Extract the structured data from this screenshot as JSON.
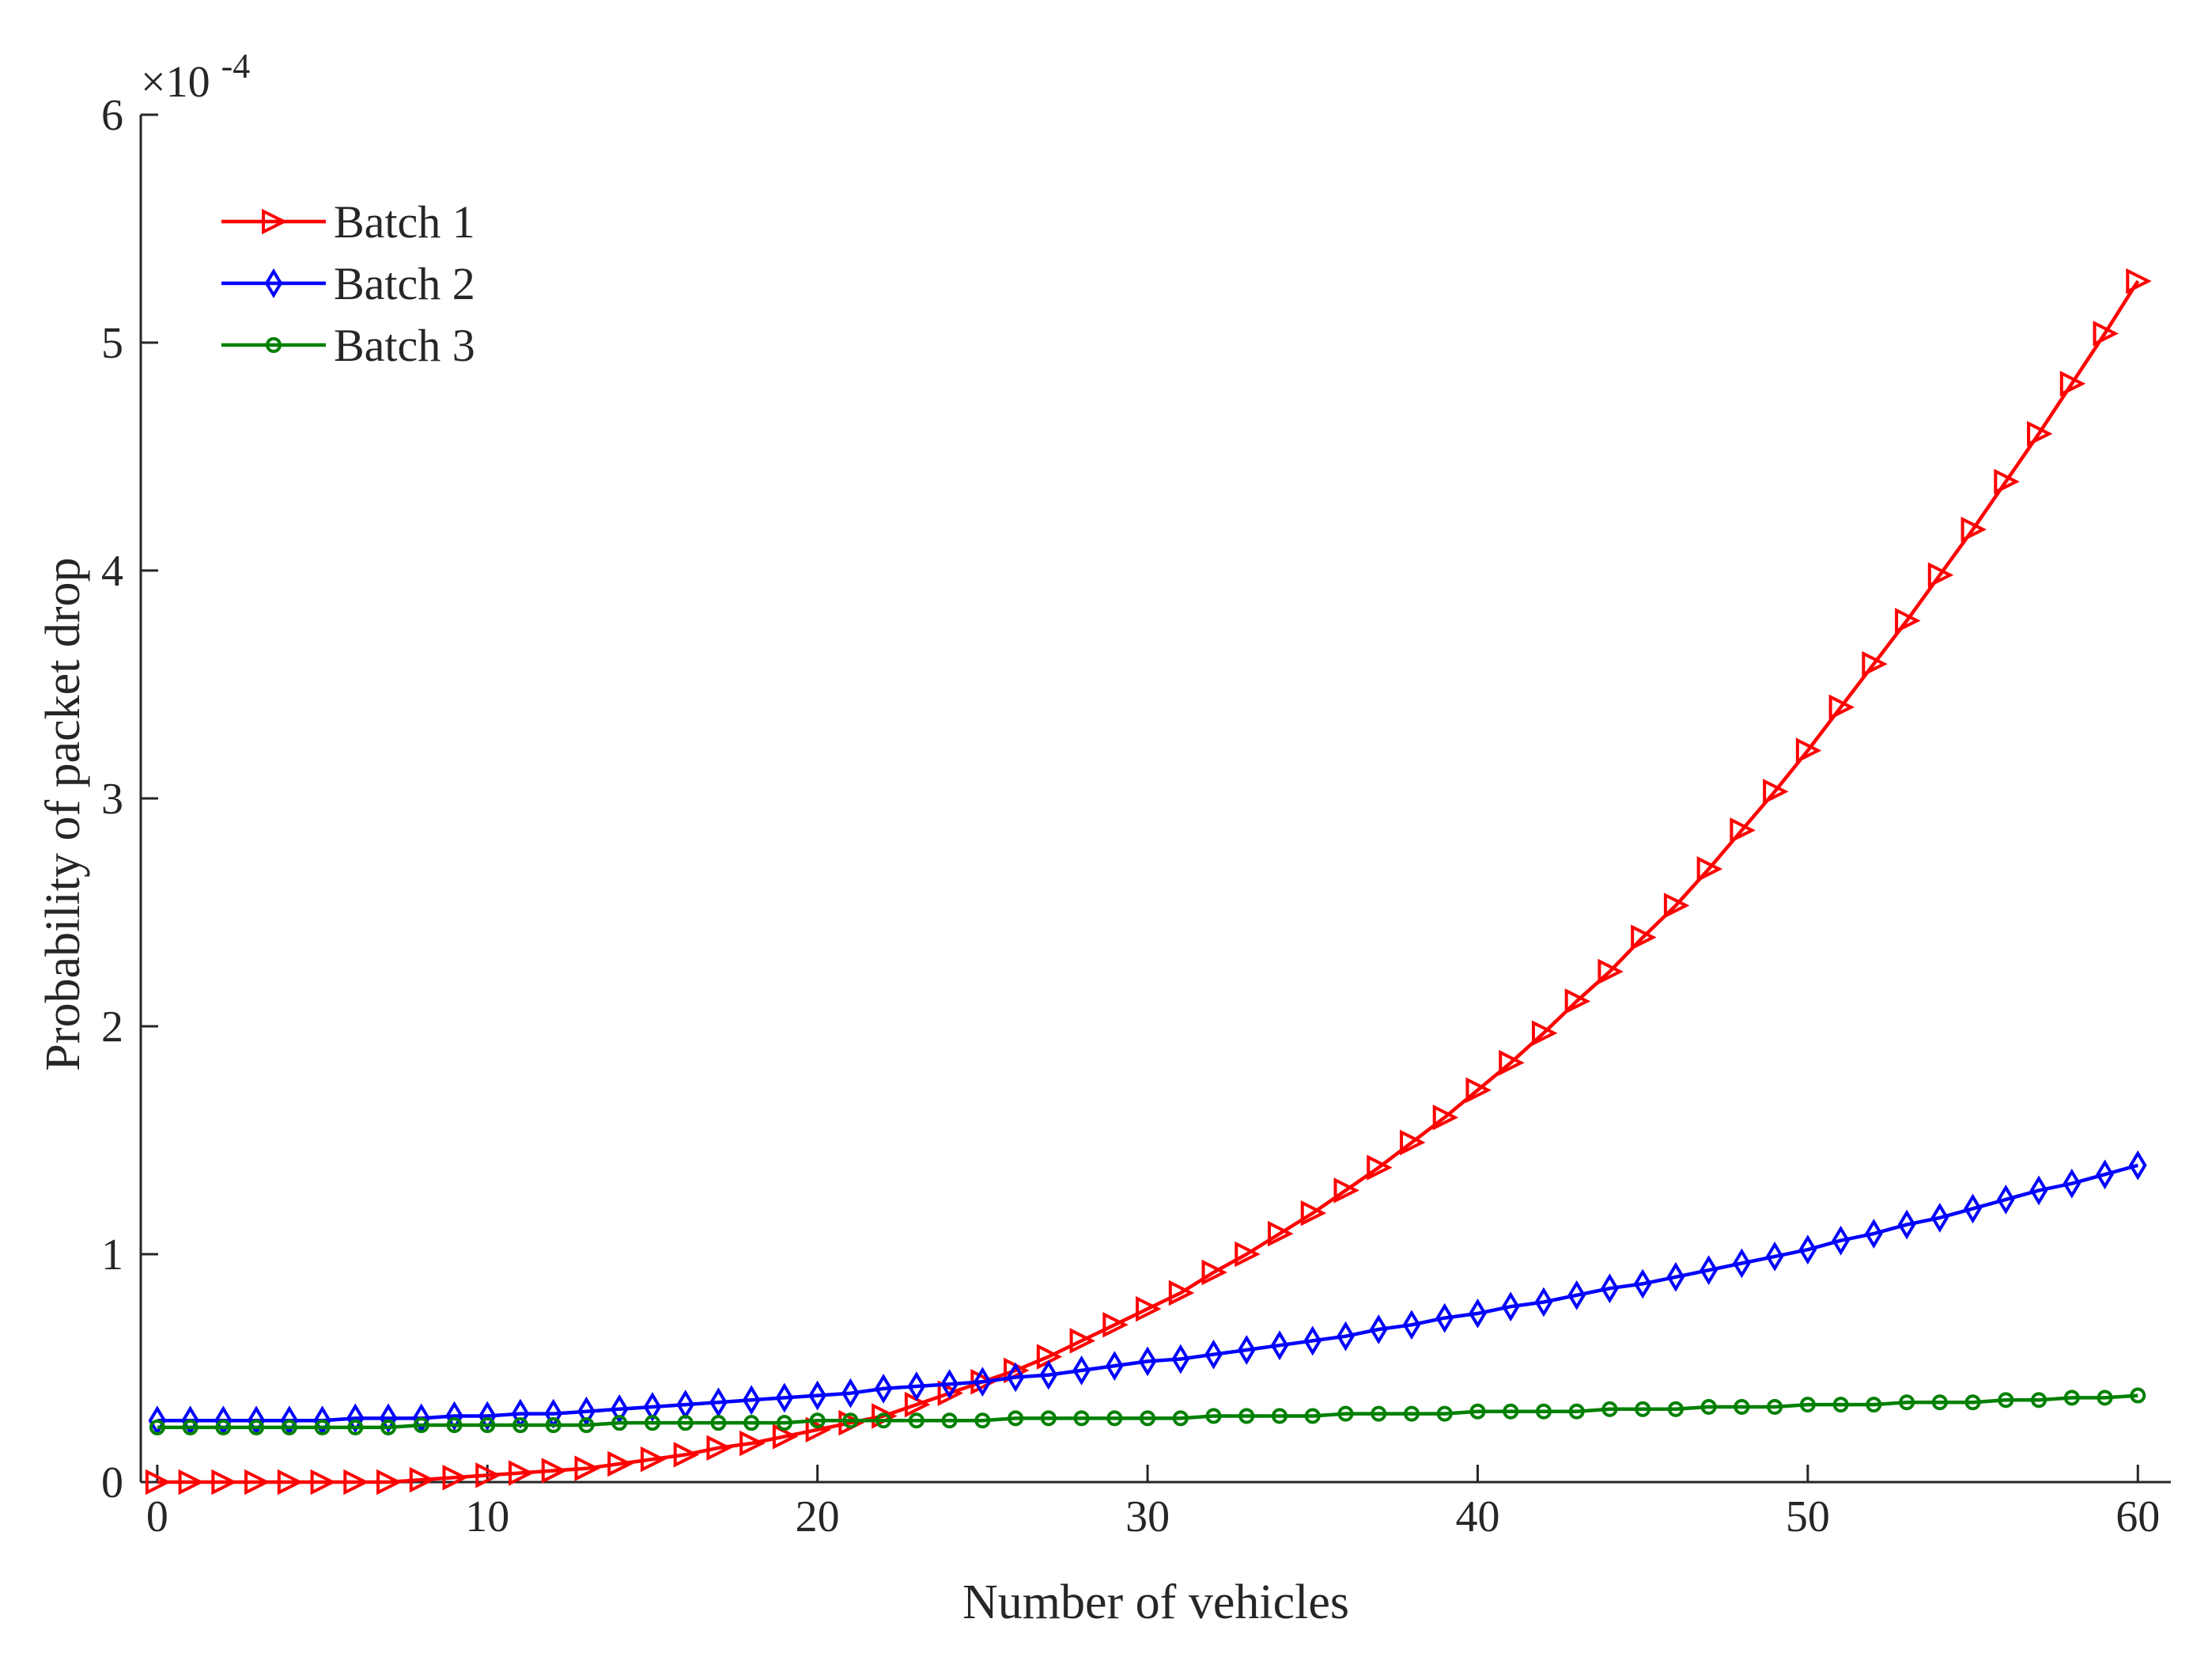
{
  "chart_data": {
    "type": "line",
    "title": "",
    "xlabel": "Number of vehicles",
    "ylabel": "Probability of packet drop",
    "exponent_label": "×10",
    "exponent_power": "-4",
    "xlim": [
      -0.5,
      61
    ],
    "ylim": [
      0,
      6
    ],
    "xticks": [
      0,
      10,
      20,
      30,
      40,
      50,
      60
    ],
    "xtick_labels": [
      "0",
      "10",
      "20",
      "30",
      "40",
      "50",
      "60"
    ],
    "yticks": [
      0,
      1,
      2,
      3,
      4,
      5,
      6
    ],
    "ytick_labels": [
      "0",
      "1",
      "2",
      "3",
      "4",
      "5",
      "6"
    ],
    "y_scale_note": "values in units of 1e-4",
    "grid": false,
    "legend_position": "top-left",
    "x": [
      0,
      1,
      2,
      3,
      4,
      5,
      6,
      7,
      8,
      9,
      10,
      11,
      12,
      13,
      14,
      15,
      16,
      17,
      18,
      19,
      20,
      21,
      22,
      23,
      24,
      25,
      26,
      27,
      28,
      29,
      30,
      31,
      32,
      33,
      34,
      35,
      36,
      37,
      38,
      39,
      40,
      41,
      42,
      43,
      44,
      45,
      46,
      47,
      48,
      49,
      50,
      51,
      52,
      53,
      54,
      55,
      56,
      57,
      58,
      59,
      60
    ],
    "series": [
      {
        "name": "Batch 1",
        "color": "#ff0000",
        "marker": "triangle-right",
        "values": [
          0.0,
          0.0,
          0.0,
          0.0,
          0.0,
          0.0,
          0.0,
          0.0,
          0.01,
          0.02,
          0.03,
          0.04,
          0.05,
          0.06,
          0.08,
          0.1,
          0.12,
          0.15,
          0.17,
          0.2,
          0.23,
          0.26,
          0.29,
          0.34,
          0.39,
          0.44,
          0.49,
          0.55,
          0.62,
          0.69,
          0.76,
          0.83,
          0.92,
          1.0,
          1.09,
          1.18,
          1.28,
          1.38,
          1.49,
          1.6,
          1.72,
          1.84,
          1.97,
          2.11,
          2.24,
          2.39,
          2.53,
          2.69,
          2.86,
          3.03,
          3.21,
          3.4,
          3.59,
          3.78,
          3.98,
          4.18,
          4.39,
          4.6,
          4.82,
          5.04,
          5.27
        ]
      },
      {
        "name": "Batch 2",
        "color": "#0000ff",
        "marker": "diamond",
        "values": [
          0.27,
          0.27,
          0.27,
          0.27,
          0.27,
          0.27,
          0.28,
          0.28,
          0.28,
          0.29,
          0.29,
          0.3,
          0.3,
          0.31,
          0.32,
          0.33,
          0.34,
          0.35,
          0.36,
          0.37,
          0.38,
          0.39,
          0.41,
          0.42,
          0.43,
          0.44,
          0.46,
          0.47,
          0.49,
          0.51,
          0.53,
          0.54,
          0.56,
          0.58,
          0.6,
          0.62,
          0.64,
          0.67,
          0.69,
          0.72,
          0.74,
          0.77,
          0.79,
          0.82,
          0.85,
          0.87,
          0.9,
          0.93,
          0.96,
          0.99,
          1.02,
          1.06,
          1.09,
          1.13,
          1.16,
          1.2,
          1.24,
          1.28,
          1.31,
          1.35,
          1.39
        ]
      },
      {
        "name": "Batch 3",
        "color": "#008000",
        "marker": "circle",
        "values": [
          0.24,
          0.24,
          0.24,
          0.24,
          0.24,
          0.24,
          0.24,
          0.24,
          0.25,
          0.25,
          0.25,
          0.25,
          0.25,
          0.25,
          0.26,
          0.26,
          0.26,
          0.26,
          0.26,
          0.26,
          0.27,
          0.27,
          0.27,
          0.27,
          0.27,
          0.27,
          0.28,
          0.28,
          0.28,
          0.28,
          0.28,
          0.28,
          0.29,
          0.29,
          0.29,
          0.29,
          0.3,
          0.3,
          0.3,
          0.3,
          0.31,
          0.31,
          0.31,
          0.31,
          0.32,
          0.32,
          0.32,
          0.33,
          0.33,
          0.33,
          0.34,
          0.34,
          0.34,
          0.35,
          0.35,
          0.35,
          0.36,
          0.36,
          0.37,
          0.37,
          0.38
        ]
      }
    ]
  }
}
